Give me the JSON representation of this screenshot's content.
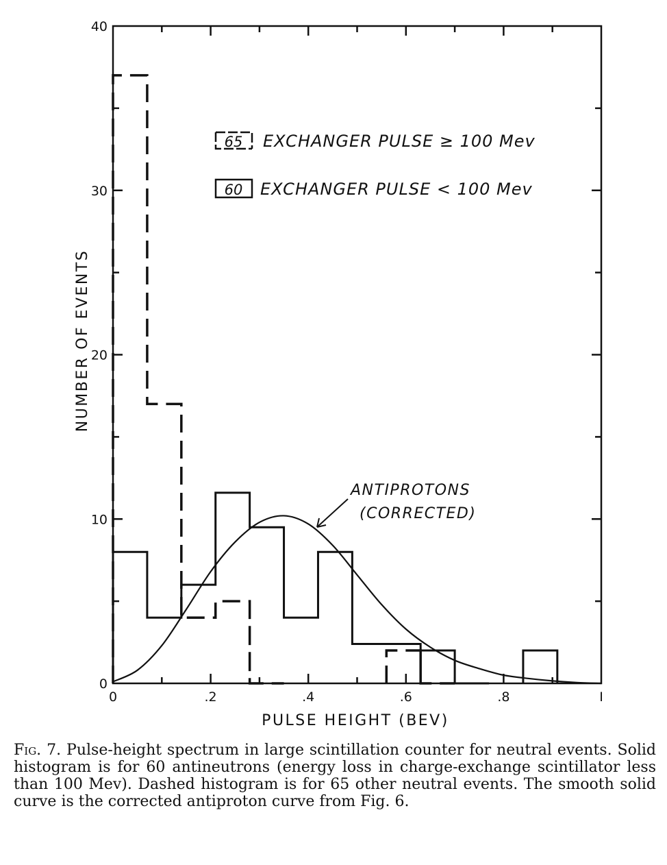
{
  "chart_data": {
    "type": "histogram",
    "xlabel": "PULSE HEIGHT (BEV)",
    "ylabel": "NUMBER OF EVENTS",
    "xlim": [
      0,
      1
    ],
    "ylim": [
      0,
      40
    ],
    "x_ticks": [
      0,
      0.2,
      0.4,
      0.6,
      0.8,
      1
    ],
    "x_tick_labels": [
      "0",
      ".2",
      ".4",
      ".6",
      ".8",
      "I"
    ],
    "y_ticks": [
      0,
      10,
      20,
      30,
      40
    ],
    "y_tick_labels": [
      "0",
      "10",
      "20",
      "30",
      "40"
    ],
    "minor_y_ticks": [
      5,
      15,
      25,
      35
    ],
    "minor_x_ticks": [
      0.1,
      0.3,
      0.5,
      0.7,
      0.9
    ],
    "grid": false,
    "legend_position": "top-right",
    "bin_edges": [
      0,
      0.07,
      0.14,
      0.21,
      0.28,
      0.35,
      0.42,
      0.49,
      0.56,
      0.63,
      0.7,
      0.77,
      0.84,
      0.91
    ],
    "series": [
      {
        "name": "EXCHANGER PULSE ≥ 100 Mev",
        "count_label": "65",
        "style": "dashed",
        "values": [
          37,
          17,
          4,
          5,
          0,
          0,
          0,
          0,
          2,
          0,
          0,
          0,
          0
        ]
      },
      {
        "name": "EXCHANGER PULSE < 100 Mev",
        "count_label": "60",
        "style": "solid",
        "values": [
          8,
          4,
          6,
          11.6,
          9.5,
          4,
          8,
          2.4,
          2.4,
          2,
          0,
          0,
          2
        ]
      }
    ],
    "curve": {
      "name": "ANTIPROTONS (CORRECTED)",
      "label_line1": "ANTIPROTONS",
      "label_line2": "(CORRECTED)",
      "x": [
        0,
        0.05,
        0.1,
        0.15,
        0.2,
        0.25,
        0.3,
        0.35,
        0.4,
        0.45,
        0.5,
        0.55,
        0.6,
        0.65,
        0.7,
        0.75,
        0.8,
        0.85,
        0.9,
        0.95,
        1.0
      ],
      "y": [
        0.1,
        0.8,
        2.3,
        4.5,
        6.8,
        8.6,
        9.8,
        10.2,
        9.7,
        8.4,
        6.6,
        4.8,
        3.3,
        2.2,
        1.4,
        0.9,
        0.5,
        0.3,
        0.15,
        0.05,
        0
      ]
    }
  },
  "caption": {
    "label": "Fig. 7.",
    "text": " Pulse-height spectrum in large scintillation counter for neutral events. Solid histogram is for 60 antineutrons (energy loss in charge-exchange scintillator less than 100 Mev). Dashed histogram is for 65 other neutral events. The smooth solid curve is the corrected antiproton curve from Fig. 6."
  }
}
